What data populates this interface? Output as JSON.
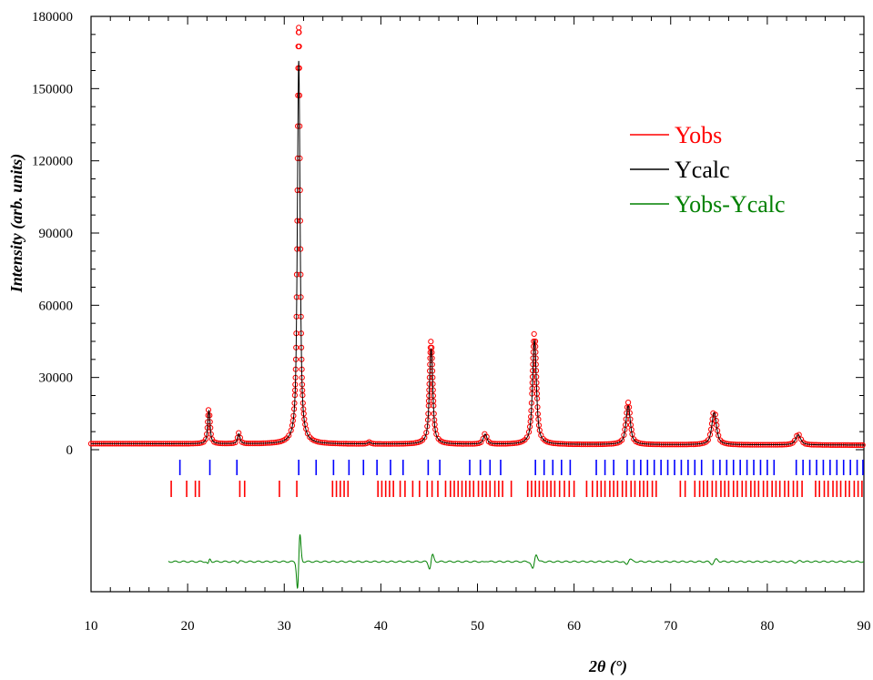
{
  "chart_data": {
    "type": "line",
    "xlabel": "2θ (°)",
    "ylabel": "Intensity (arb. units)",
    "xlim": [
      10,
      90
    ],
    "ylim": [
      0,
      180000
    ],
    "x_ticks": [
      10,
      20,
      30,
      40,
      50,
      60,
      70,
      80,
      90
    ],
    "y_ticks": [
      0,
      30000,
      60000,
      90000,
      120000,
      150000,
      180000
    ],
    "grid": false,
    "legend_position": "top-right",
    "series": [
      {
        "name": "Yobs",
        "color": "#ff0000",
        "marker": "open-circle"
      },
      {
        "name": "Ycalc",
        "color": "#000000",
        "marker": "line"
      },
      {
        "name": "Yobs-Ycalc",
        "color": "#008000",
        "marker": "line"
      }
    ],
    "baseline": 2500,
    "peaks": [
      {
        "x": 22.2,
        "y": 15000
      },
      {
        "x": 25.3,
        "y": 4500
      },
      {
        "x": 31.5,
        "y": 173000
      },
      {
        "x": 38.8,
        "y": 800
      },
      {
        "x": 45.2,
        "y": 43000
      },
      {
        "x": 50.8,
        "y": 4500
      },
      {
        "x": 55.9,
        "y": 47000
      },
      {
        "x": 65.6,
        "y": 17500
      },
      {
        "x": 74.5,
        "y": 14500
      },
      {
        "x": 83.2,
        "y": 4500
      }
    ],
    "bragg_positions_phase1": [
      19.2,
      22.3,
      25.1,
      31.5,
      33.3,
      35.1,
      36.7,
      38.2,
      39.6,
      41.0,
      42.3,
      44.9,
      46.1,
      49.2,
      50.3,
      51.3,
      52.4,
      56.0,
      56.9,
      57.8,
      58.7,
      59.6,
      62.3,
      63.2,
      64.1,
      65.5,
      66.2,
      66.9,
      67.6,
      68.3,
      69.0,
      69.7,
      70.4,
      71.1,
      71.8,
      72.5,
      73.2,
      74.4,
      75.1,
      75.8,
      76.5,
      77.2,
      77.9,
      78.6,
      79.3,
      80.0,
      80.7,
      83.0,
      83.7,
      84.4,
      85.1,
      85.8,
      86.5,
      87.2,
      87.9,
      88.6,
      89.3,
      89.9
    ],
    "bragg_positions_phase2": [
      18.3,
      19.9,
      20.8,
      21.2,
      25.4,
      25.9,
      29.5,
      31.3,
      35.0,
      35.4,
      35.8,
      36.2,
      36.6,
      39.7,
      40.1,
      40.5,
      40.9,
      41.3,
      42.0,
      42.5,
      43.3,
      44.0,
      44.8,
      45.3,
      45.9,
      46.7,
      47.2,
      47.6,
      48.0,
      48.4,
      48.8,
      49.2,
      49.6,
      50.1,
      50.5,
      50.9,
      51.3,
      51.8,
      52.2,
      52.6,
      53.5,
      55.2,
      55.6,
      56.0,
      56.4,
      56.8,
      57.2,
      57.6,
      58.0,
      58.5,
      59.0,
      59.5,
      60.0,
      61.3,
      61.9,
      62.4,
      62.8,
      63.2,
      63.7,
      64.1,
      64.5,
      65.0,
      65.4,
      65.9,
      66.3,
      66.8,
      67.2,
      67.6,
      68.1,
      68.5,
      71.0,
      71.5,
      72.5,
      73.0,
      73.4,
      73.8,
      74.3,
      74.7,
      75.2,
      75.6,
      76.0,
      76.5,
      76.9,
      77.4,
      77.8,
      78.3,
      78.7,
      79.1,
      79.6,
      80.0,
      80.5,
      80.9,
      81.3,
      81.8,
      82.2,
      82.7,
      83.1,
      83.6,
      85.0,
      85.4,
      85.9,
      86.3,
      86.8,
      87.2,
      87.6,
      88.1,
      88.5,
      89.0,
      89.4,
      89.8
    ]
  }
}
